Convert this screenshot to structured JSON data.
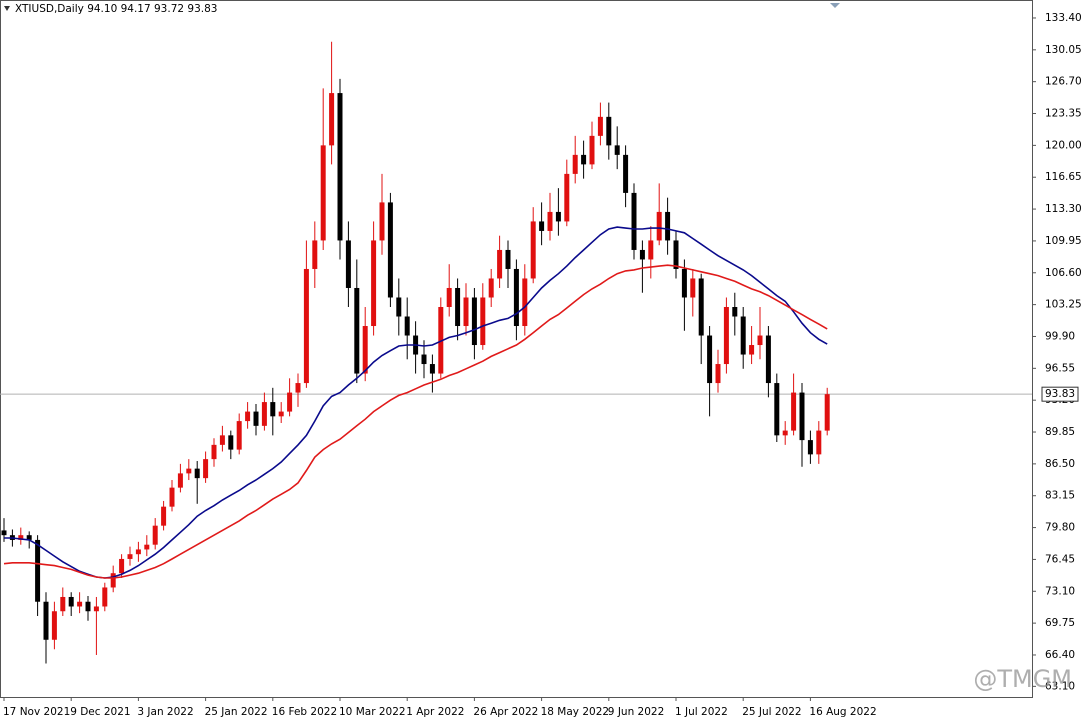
{
  "chart_data": {
    "type": "candlestick",
    "header": "XTIUSD,Daily  94.10 94.17 93.72 93.83",
    "watermark": "@TMGM",
    "up_color": "#e01010",
    "down_color": "#000000",
    "ylim": [
      61.98,
      135.29
    ],
    "yticks": [
      {
        "value": 133.4,
        "label": "133.40"
      },
      {
        "value": 130.05,
        "label": "130.05"
      },
      {
        "value": 126.7,
        "label": "126.70"
      },
      {
        "value": 123.35,
        "label": "123.35"
      },
      {
        "value": 120,
        "label": "120.00"
      },
      {
        "value": 116.65,
        "label": "116.65"
      },
      {
        "value": 113.3,
        "label": "113.30"
      },
      {
        "value": 109.95,
        "label": "109.95"
      },
      {
        "value": 106.6,
        "label": "106.60"
      },
      {
        "value": 103.25,
        "label": "103.25"
      },
      {
        "value": 99.9,
        "label": "99.90"
      },
      {
        "value": 96.55,
        "label": "96.55"
      },
      {
        "value": 93.2,
        "label": "93.20"
      },
      {
        "value": 89.85,
        "label": "89.85"
      },
      {
        "value": 86.5,
        "label": "86.50"
      },
      {
        "value": 83.15,
        "label": "83.15"
      },
      {
        "value": 79.8,
        "label": "79.80"
      },
      {
        "value": 76.45,
        "label": "76.45"
      },
      {
        "value": 73.1,
        "label": "73.10"
      },
      {
        "value": 69.75,
        "label": "69.75"
      },
      {
        "value": 66.4,
        "label": "66.40"
      },
      {
        "value": 63.1,
        "label": "63.10"
      }
    ],
    "last_price": 93.83,
    "categories": [
      "17 Nov 2021",
      null,
      null,
      null,
      null,
      null,
      null,
      null,
      "9 Dec 2021",
      null,
      null,
      null,
      null,
      null,
      null,
      null,
      "3 Jan 2022",
      null,
      null,
      null,
      null,
      null,
      null,
      null,
      "25 Jan 2022",
      null,
      null,
      null,
      null,
      null,
      null,
      null,
      "16 Feb 2022",
      null,
      null,
      null,
      null,
      null,
      null,
      null,
      "10 Mar 2022",
      null,
      null,
      null,
      null,
      null,
      null,
      null,
      "1 Apr 2022",
      null,
      null,
      null,
      null,
      null,
      null,
      null,
      "26 Apr 2022",
      null,
      null,
      null,
      null,
      null,
      null,
      null,
      "18 May 2022",
      null,
      null,
      null,
      null,
      null,
      null,
      null,
      "9 Jun 2022",
      null,
      null,
      null,
      null,
      null,
      null,
      null,
      "1 Jul 2022",
      null,
      null,
      null,
      null,
      null,
      null,
      null,
      "25 Jul 2022",
      null,
      null,
      null,
      null,
      null,
      null,
      null,
      "16 Aug 2022",
      null,
      null
    ],
    "ohlc": [
      [
        79.5,
        80.8,
        78.3,
        79
      ],
      [
        79,
        79.6,
        77.8,
        78.5
      ],
      [
        78.5,
        79.8,
        78,
        79
      ],
      [
        79,
        79.4,
        77.6,
        78.5
      ],
      [
        78.5,
        79,
        70.5,
        72
      ],
      [
        72,
        73,
        65.5,
        68
      ],
      [
        68,
        72,
        67,
        71
      ],
      [
        71,
        73.5,
        70.5,
        72.5
      ],
      [
        72.5,
        73,
        70.5,
        71.5
      ],
      [
        71.5,
        73,
        70.8,
        72
      ],
      [
        72,
        72.6,
        70,
        71
      ],
      [
        71,
        72.5,
        66.4,
        71.5
      ],
      [
        71.5,
        74,
        71,
        73.5
      ],
      [
        73.5,
        75.8,
        73,
        75
      ],
      [
        75,
        77,
        74.5,
        76.5
      ],
      [
        76.5,
        77.8,
        75.8,
        77
      ],
      [
        77,
        78.3,
        76.2,
        77.5
      ],
      [
        77.5,
        79,
        76.8,
        78
      ],
      [
        78,
        80.8,
        77.5,
        80
      ],
      [
        80,
        82.6,
        79.5,
        82
      ],
      [
        82,
        84.8,
        81.5,
        84
      ],
      [
        84,
        86.5,
        83.5,
        85.5
      ],
      [
        85.5,
        87,
        84.8,
        86
      ],
      [
        86,
        86.8,
        82.3,
        85
      ],
      [
        85,
        87.8,
        84.5,
        87
      ],
      [
        87,
        89.2,
        86.2,
        88.5
      ],
      [
        88.5,
        90.5,
        87.8,
        89.5
      ],
      [
        89.5,
        90,
        87,
        88
      ],
      [
        88,
        91.8,
        87.5,
        91
      ],
      [
        91,
        93,
        90.2,
        92
      ],
      [
        92,
        92.8,
        89.5,
        90.5
      ],
      [
        90.5,
        94,
        90,
        93
      ],
      [
        93,
        94.5,
        89.5,
        91.5
      ],
      [
        91.5,
        93,
        90.8,
        92
      ],
      [
        92,
        95.5,
        91.5,
        94
      ],
      [
        94,
        96,
        92.5,
        95
      ],
      [
        95,
        110,
        94.5,
        107
      ],
      [
        107,
        112,
        105,
        110
      ],
      [
        110,
        126,
        109,
        120
      ],
      [
        120,
        130.9,
        118,
        125.5
      ],
      [
        125.5,
        127,
        108,
        110
      ],
      [
        110,
        112,
        103,
        105
      ],
      [
        105,
        108,
        95,
        96
      ],
      [
        96,
        103,
        95.2,
        101
      ],
      [
        101,
        112,
        100,
        110
      ],
      [
        110,
        117,
        108.5,
        114
      ],
      [
        114,
        115,
        103,
        104
      ],
      [
        104,
        106,
        100,
        102
      ],
      [
        102,
        104,
        97.5,
        100
      ],
      [
        100,
        101.5,
        96,
        98
      ],
      [
        98,
        99.5,
        95.5,
        97
      ],
      [
        97,
        98,
        94,
        96
      ],
      [
        96,
        104,
        95.5,
        103
      ],
      [
        103,
        107.5,
        102,
        105
      ],
      [
        105,
        106,
        99.5,
        101
      ],
      [
        101,
        105.5,
        100,
        104
      ],
      [
        104,
        105,
        97.5,
        99
      ],
      [
        99,
        105.5,
        98.5,
        104
      ],
      [
        104,
        107,
        103,
        106
      ],
      [
        106,
        110.5,
        105,
        109
      ],
      [
        109,
        110,
        105,
        107
      ],
      [
        107,
        108,
        99.5,
        101
      ],
      [
        101,
        107.5,
        100,
        106
      ],
      [
        106,
        113.5,
        105.5,
        112
      ],
      [
        112,
        114,
        109.5,
        111
      ],
      [
        111,
        115,
        110,
        113
      ],
      [
        113,
        115.5,
        110.5,
        112
      ],
      [
        112,
        118.5,
        111.5,
        117
      ],
      [
        117,
        121,
        116,
        119
      ],
      [
        119,
        120.5,
        116.5,
        118
      ],
      [
        118,
        122.5,
        117.5,
        121
      ],
      [
        121,
        124.5,
        120,
        123
      ],
      [
        123,
        124.5,
        118.5,
        120
      ],
      [
        120,
        122,
        117.5,
        119
      ],
      [
        119,
        120,
        113.5,
        115
      ],
      [
        115,
        116,
        108,
        109
      ],
      [
        109,
        110,
        104.5,
        108
      ],
      [
        108,
        111.5,
        106,
        110
      ],
      [
        110,
        116,
        109.5,
        113
      ],
      [
        113,
        114.5,
        108.5,
        110
      ],
      [
        110,
        111,
        106,
        107
      ],
      [
        107,
        108,
        100.5,
        104
      ],
      [
        104,
        107,
        102,
        106
      ],
      [
        106,
        106.5,
        97,
        100
      ],
      [
        100,
        101,
        91.5,
        95
      ],
      [
        95,
        98.5,
        94,
        97
      ],
      [
        97,
        104,
        96,
        103
      ],
      [
        103,
        104.5,
        100,
        102
      ],
      [
        102,
        103,
        96.5,
        98
      ],
      [
        98,
        101,
        97,
        99
      ],
      [
        99,
        103,
        97.5,
        100
      ],
      [
        100,
        101,
        93.5,
        95
      ],
      [
        95,
        96,
        88.8,
        89.5
      ],
      [
        89.5,
        91,
        88.5,
        90
      ],
      [
        90,
        96,
        89.5,
        94
      ],
      [
        94,
        95,
        86.2,
        89
      ],
      [
        89,
        90,
        86.5,
        87.5
      ],
      [
        87.5,
        91,
        86.5,
        90
      ],
      [
        90,
        94.5,
        89.5,
        93.83
      ]
    ],
    "lines": [
      {
        "color": "#0a0a8c",
        "values": [
          78.7,
          78.7,
          78.6,
          78.5,
          78,
          77.4,
          76.8,
          76.2,
          75.7,
          75.2,
          74.9,
          74.6,
          74.5,
          74.6,
          74.9,
          75.3,
          75.8,
          76.4,
          77,
          77.7,
          78.5,
          79.3,
          80.1,
          81,
          81.6,
          82.1,
          82.7,
          83.2,
          83.7,
          84.3,
          84.8,
          85.4,
          86,
          86.7,
          87.6,
          88.5,
          89.5,
          91,
          92.6,
          93.6,
          94,
          94.8,
          95.5,
          96.3,
          97.2,
          97.9,
          98.4,
          98.9,
          99,
          99,
          98.9,
          99,
          99.4,
          99.8,
          100,
          100.3,
          100.6,
          101,
          101.3,
          101.6,
          101.8,
          102.3,
          103,
          104,
          105,
          105.8,
          106.5,
          107.3,
          108.2,
          109,
          109.8,
          110.6,
          111.2,
          111.4,
          111.3,
          111.2,
          111.2,
          111.3,
          111.3,
          111.2,
          111,
          110.8,
          110.2,
          109.6,
          109,
          108.4,
          107.9,
          107.4,
          106.9,
          106.3,
          105.6,
          104.9,
          104.2,
          103.6,
          102.5,
          101.3,
          100.3,
          99.6,
          99.1
        ]
      },
      {
        "color": "#e01a1a",
        "values": [
          76,
          76.1,
          76.1,
          76.1,
          76,
          75.9,
          75.8,
          75.6,
          75.4,
          75.1,
          74.8,
          74.6,
          74.5,
          74.5,
          74.6,
          74.8,
          75,
          75.3,
          75.6,
          76,
          76.5,
          77,
          77.5,
          78,
          78.5,
          79,
          79.5,
          80,
          80.5,
          81.1,
          81.6,
          82.2,
          82.8,
          83.3,
          83.8,
          84.5,
          85.8,
          87.2,
          88,
          88.6,
          89.1,
          89.8,
          90.5,
          91.2,
          92,
          92.6,
          93.2,
          93.7,
          94,
          94.4,
          94.8,
          95.1,
          95.4,
          95.8,
          96.1,
          96.5,
          96.9,
          97.3,
          97.8,
          98.2,
          98.6,
          99,
          99.6,
          100.3,
          101,
          101.7,
          102.2,
          102.9,
          103.6,
          104.3,
          104.9,
          105.4,
          106,
          106.5,
          106.8,
          106.9,
          107.1,
          107.2,
          107.3,
          107.4,
          107.3,
          107.1,
          106.9,
          106.7,
          106.5,
          106.3,
          106,
          105.7,
          105.3,
          104.9,
          104.6,
          104.2,
          103.7,
          103.2,
          102.7,
          102.2,
          101.7,
          101.2,
          100.7
        ]
      }
    ]
  }
}
